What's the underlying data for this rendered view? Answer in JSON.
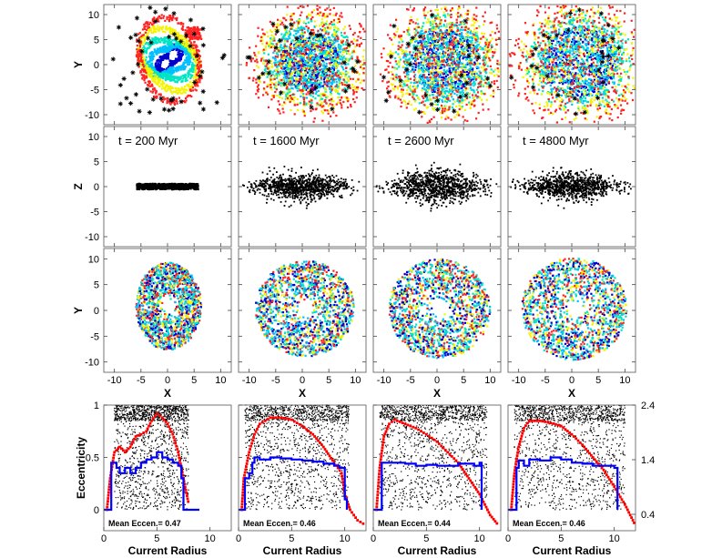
{
  "chart_data": {
    "type": "scatter",
    "layout": "4 columns x 4 rows of panels",
    "columns": [
      {
        "time_value": "200",
        "mean_eccentricity": "0.47"
      },
      {
        "time_value": "1600",
        "mean_eccentricity": "0.46"
      },
      {
        "time_value": "2600",
        "mean_eccentricity": "0.44"
      },
      {
        "time_value": "4800",
        "mean_eccentricity": "0.46"
      }
    ],
    "time_prefix": "t =",
    "time_unit": "Myr",
    "mean_label": "Mean Eccen.=",
    "rows": {
      "xy_colored": {
        "ylabel": "Y",
        "xlabel": "X",
        "xlim": [
          -12,
          12
        ],
        "ylim": [
          -12,
          12
        ]
      },
      "xz": {
        "ylabel": "Z",
        "xlim": [
          -12,
          12
        ],
        "ylim": [
          -12,
          12
        ]
      },
      "xy_mixed": {
        "ylabel": "Y",
        "xlabel": "X",
        "xlim": [
          -12,
          12
        ],
        "ylim": [
          -12,
          12
        ]
      },
      "eccentricity": {
        "ylabel": "Eccentricity",
        "xlabel": "Current Radius",
        "xlim": [
          0,
          12
        ],
        "ylim": [
          -0.2,
          1
        ],
        "y2lim": [
          0.1,
          2.4
        ]
      }
    },
    "xy_ticks": [
      "-10",
      "-5",
      "0",
      "5",
      "10"
    ],
    "xy_tick_values": [
      -10,
      -5,
      0,
      5,
      10
    ],
    "ecc_x_ticks": [
      "0",
      "5",
      "10"
    ],
    "ecc_x_tick_values": [
      0,
      5,
      10
    ],
    "ecc_y_ticks": [
      "0",
      "0.5",
      "1"
    ],
    "ecc_y_tick_values": [
      0,
      0.5,
      1
    ],
    "right_axis_ticks": [
      "0.4",
      "1.4",
      "2.4"
    ],
    "right_axis_tick_values": [
      0.4,
      1.4,
      2.4
    ],
    "series_colors": {
      "population": [
        "#0000cc",
        "#00bfff",
        "#00e5c4",
        "#f4f400",
        "#ff2222"
      ],
      "stars": "#000000",
      "scatter": "#000000",
      "red_curve": "#ff0000",
      "blue_histogram": "#0000ff"
    },
    "blue_histogram_series": [
      {
        "points": [
          [
            0.0,
            0
          ],
          [
            0.6,
            0
          ],
          [
            0.7,
            0.45
          ],
          [
            1.0,
            0.45
          ],
          [
            1.2,
            0.4
          ],
          [
            1.5,
            0.35
          ],
          [
            2.0,
            0.4
          ],
          [
            2.5,
            0.35
          ],
          [
            3.0,
            0.4
          ],
          [
            3.5,
            0.45
          ],
          [
            4.0,
            0.48
          ],
          [
            4.5,
            0.5
          ],
          [
            5.0,
            0.55
          ],
          [
            5.5,
            0.5
          ],
          [
            6.0,
            0.48
          ],
          [
            6.5,
            0.45
          ],
          [
            7.0,
            0.42
          ],
          [
            7.3,
            0.3
          ],
          [
            7.5,
            0.0
          ],
          [
            9.0,
            0.0
          ]
        ]
      },
      {
        "points": [
          [
            0.0,
            0
          ],
          [
            0.5,
            0
          ],
          [
            0.6,
            0.3
          ],
          [
            1.0,
            0.35
          ],
          [
            1.3,
            0.45
          ],
          [
            1.5,
            0.5
          ],
          [
            2.0,
            0.48
          ],
          [
            3.0,
            0.5
          ],
          [
            4.0,
            0.49
          ],
          [
            5.0,
            0.48
          ],
          [
            6.0,
            0.47
          ],
          [
            7.0,
            0.46
          ],
          [
            8.0,
            0.44
          ],
          [
            9.0,
            0.42
          ],
          [
            9.5,
            0.4
          ],
          [
            10.0,
            0.1
          ],
          [
            10.2,
            0.0
          ]
        ]
      },
      {
        "points": [
          [
            0.0,
            0
          ],
          [
            0.6,
            0
          ],
          [
            0.8,
            0.45
          ],
          [
            2.0,
            0.45
          ],
          [
            3.0,
            0.44
          ],
          [
            4.0,
            0.42
          ],
          [
            5.0,
            0.43
          ],
          [
            6.0,
            0.42
          ],
          [
            7.0,
            0.42
          ],
          [
            8.0,
            0.44
          ],
          [
            9.0,
            0.44
          ],
          [
            9.5,
            0.42
          ],
          [
            10.0,
            0.45
          ],
          [
            10.2,
            0.0
          ]
        ]
      },
      {
        "points": [
          [
            0.0,
            0
          ],
          [
            0.6,
            0
          ],
          [
            0.8,
            0.4
          ],
          [
            1.0,
            0.47
          ],
          [
            1.5,
            0.42
          ],
          [
            2.0,
            0.48
          ],
          [
            3.0,
            0.47
          ],
          [
            4.0,
            0.5
          ],
          [
            5.0,
            0.48
          ],
          [
            6.0,
            0.45
          ],
          [
            7.0,
            0.44
          ],
          [
            8.0,
            0.42
          ],
          [
            9.0,
            0.42
          ],
          [
            10.0,
            0.4
          ],
          [
            10.3,
            0.0
          ]
        ]
      }
    ],
    "red_curve_series": [
      {
        "points": [
          [
            0.3,
            0.0
          ],
          [
            0.6,
            0.3
          ],
          [
            1.0,
            0.55
          ],
          [
            1.5,
            0.6
          ],
          [
            2.0,
            0.55
          ],
          [
            2.5,
            0.6
          ],
          [
            3.0,
            0.7
          ],
          [
            3.5,
            0.72
          ],
          [
            4.0,
            0.75
          ],
          [
            4.5,
            0.85
          ],
          [
            5.0,
            0.92
          ],
          [
            5.5,
            0.88
          ],
          [
            6.0,
            0.82
          ],
          [
            6.5,
            0.72
          ],
          [
            7.0,
            0.55
          ],
          [
            7.5,
            0.3
          ],
          [
            8.0,
            0.05
          ]
        ]
      },
      {
        "points": [
          [
            0.3,
            0.0
          ],
          [
            0.5,
            0.3
          ],
          [
            1.0,
            0.55
          ],
          [
            1.5,
            0.72
          ],
          [
            2.0,
            0.82
          ],
          [
            3.0,
            0.88
          ],
          [
            4.0,
            0.88
          ],
          [
            5.0,
            0.86
          ],
          [
            6.0,
            0.8
          ],
          [
            7.0,
            0.72
          ],
          [
            8.0,
            0.6
          ],
          [
            9.0,
            0.45
          ],
          [
            9.7,
            0.35
          ],
          [
            10.0,
            0.15
          ],
          [
            10.5,
            0.0
          ],
          [
            11.2,
            -0.1
          ],
          [
            12.0,
            -0.15
          ]
        ]
      },
      {
        "points": [
          [
            0.3,
            0.0
          ],
          [
            0.6,
            0.4
          ],
          [
            1.0,
            0.7
          ],
          [
            1.5,
            0.82
          ],
          [
            2.0,
            0.86
          ],
          [
            3.0,
            0.82
          ],
          [
            4.0,
            0.78
          ],
          [
            5.0,
            0.72
          ],
          [
            6.0,
            0.65
          ],
          [
            7.0,
            0.55
          ],
          [
            8.0,
            0.45
          ],
          [
            9.0,
            0.3
          ],
          [
            10.0,
            0.15
          ],
          [
            11.0,
            -0.05
          ],
          [
            11.8,
            -0.15
          ]
        ]
      },
      {
        "points": [
          [
            0.3,
            0.0
          ],
          [
            0.6,
            0.35
          ],
          [
            1.0,
            0.6
          ],
          [
            1.5,
            0.78
          ],
          [
            2.0,
            0.85
          ],
          [
            3.0,
            0.85
          ],
          [
            4.0,
            0.83
          ],
          [
            5.0,
            0.8
          ],
          [
            6.0,
            0.72
          ],
          [
            7.0,
            0.62
          ],
          [
            8.0,
            0.5
          ],
          [
            9.0,
            0.38
          ],
          [
            10.0,
            0.22
          ],
          [
            11.0,
            0.05
          ],
          [
            12.0,
            -0.15
          ]
        ]
      }
    ],
    "grid": false,
    "legend": "none"
  }
}
